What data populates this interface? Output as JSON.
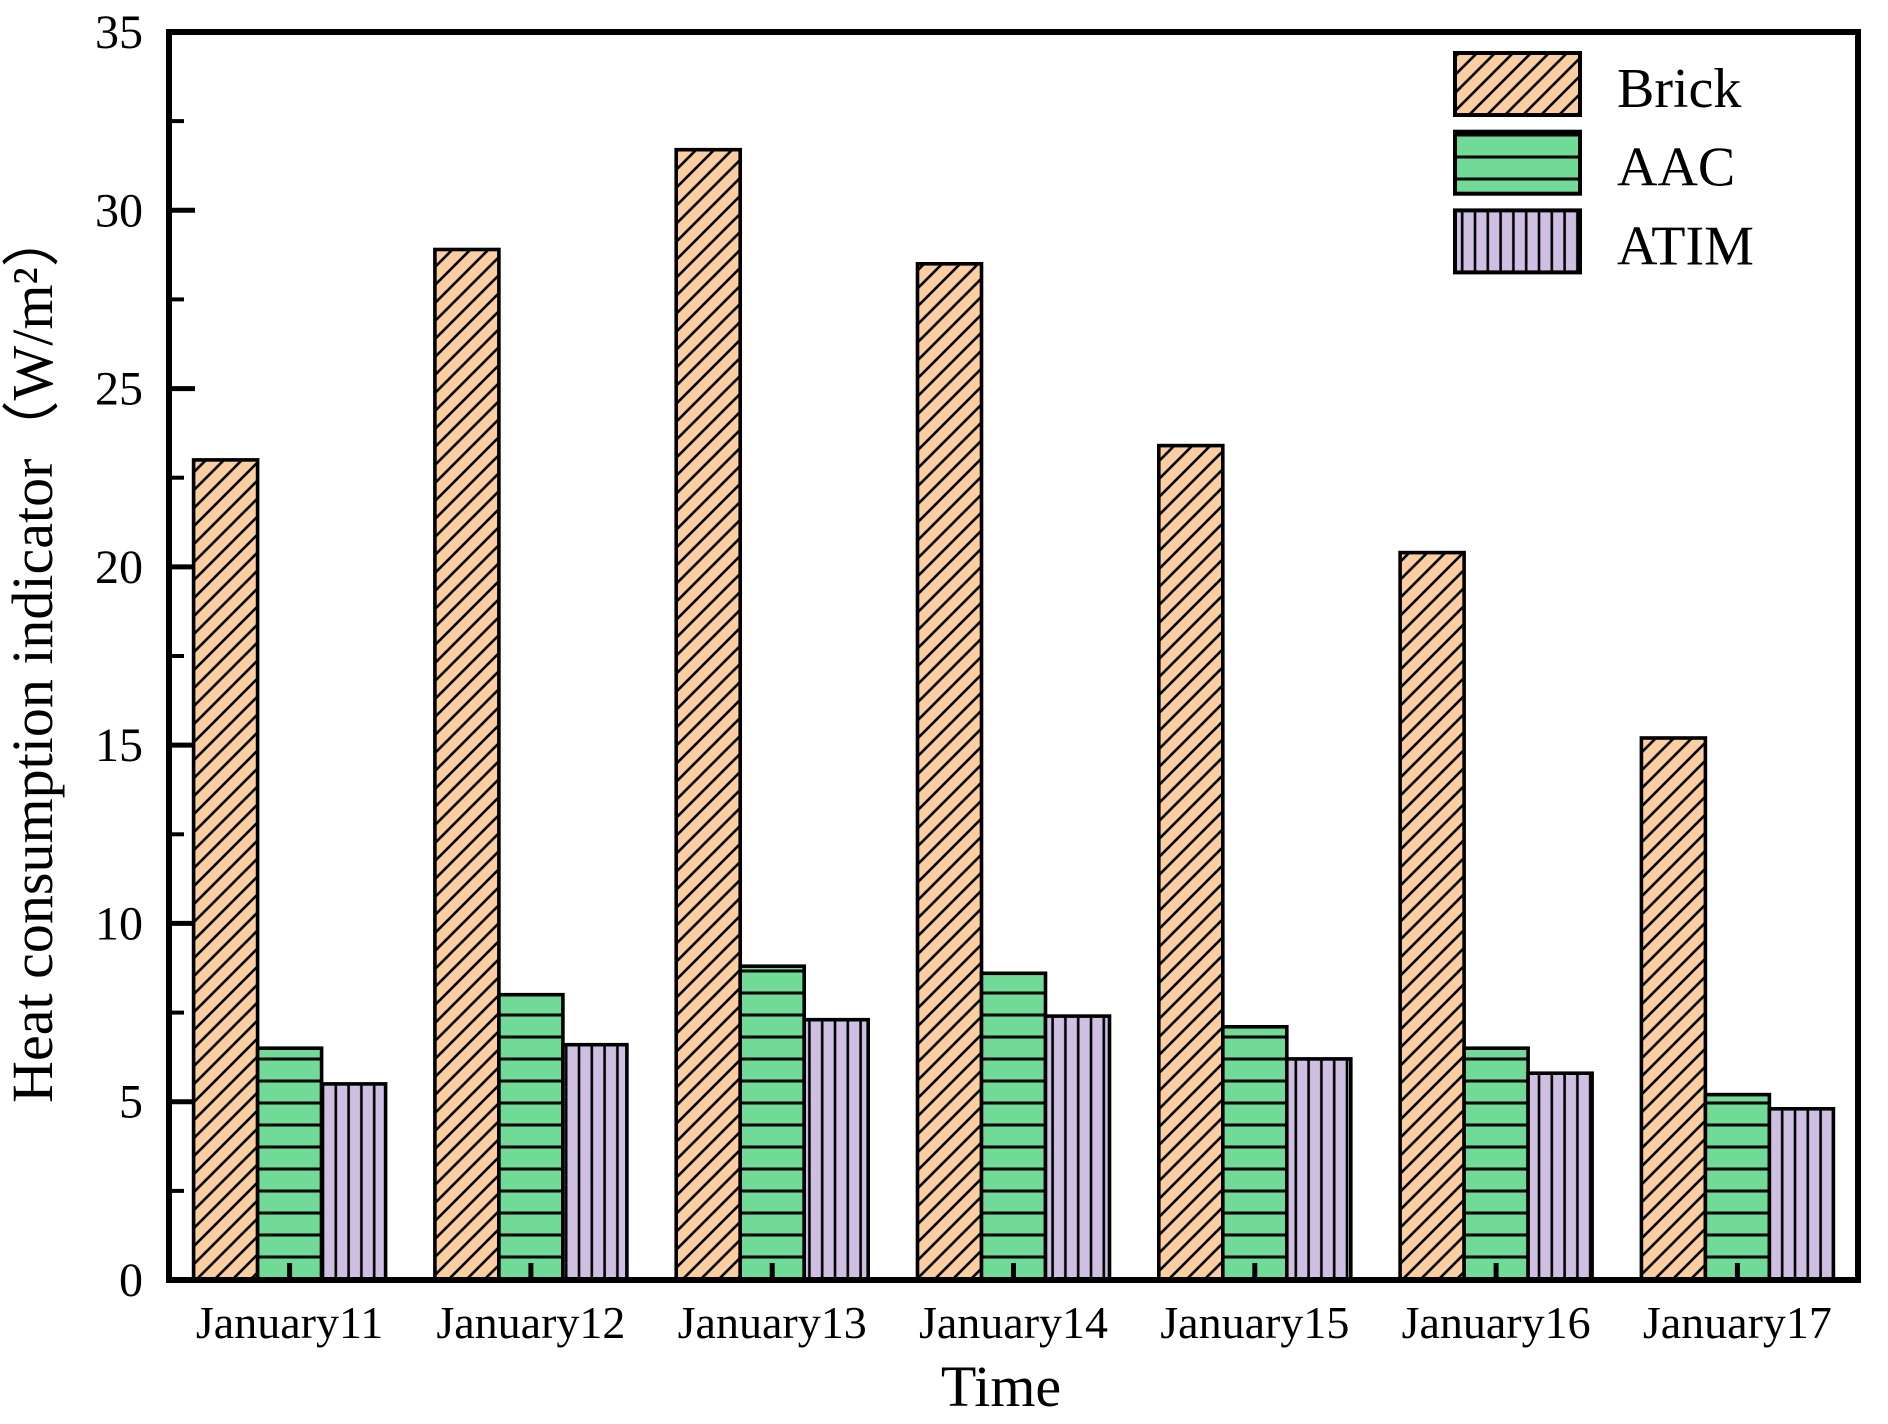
{
  "colors": {
    "background": "#ffffff",
    "axis": "#000000",
    "hatch_line": "#000000",
    "brick_fill": "#FACE9F",
    "aac_fill": "#6FDB96",
    "atim_fill": "#CFC0E3"
  },
  "chart_data": {
    "type": "bar",
    "title": "",
    "xlabel": "Time",
    "ylabel": "Heat consumption indicator（W/m²）",
    "categories": [
      "January11",
      "January12",
      "January13",
      "January14",
      "January15",
      "January16",
      "January17"
    ],
    "series": [
      {
        "name": "Brick",
        "color": "#FACE9F",
        "hatch": "diagonal",
        "values": [
          23.0,
          28.9,
          31.7,
          28.5,
          23.4,
          20.4,
          15.2
        ]
      },
      {
        "name": "AAC",
        "color": "#6FDB96",
        "hatch": "horizontal",
        "values": [
          6.5,
          8.0,
          8.8,
          8.6,
          7.1,
          6.5,
          5.2
        ]
      },
      {
        "name": "ATIM",
        "color": "#CFC0E3",
        "hatch": "vertical",
        "values": [
          5.5,
          6.6,
          7.3,
          7.4,
          6.2,
          5.8,
          4.8
        ]
      }
    ],
    "ylim": [
      0,
      35
    ],
    "ytick_major_step": 5,
    "ytick_minor_step": 2.5,
    "ytick_labels": [
      "0",
      "5",
      "10",
      "15",
      "20",
      "25",
      "30",
      "35"
    ],
    "legend": {
      "position": "top-right",
      "entries": [
        "Brick",
        "AAC",
        "ATIM"
      ]
    },
    "grid": false
  }
}
